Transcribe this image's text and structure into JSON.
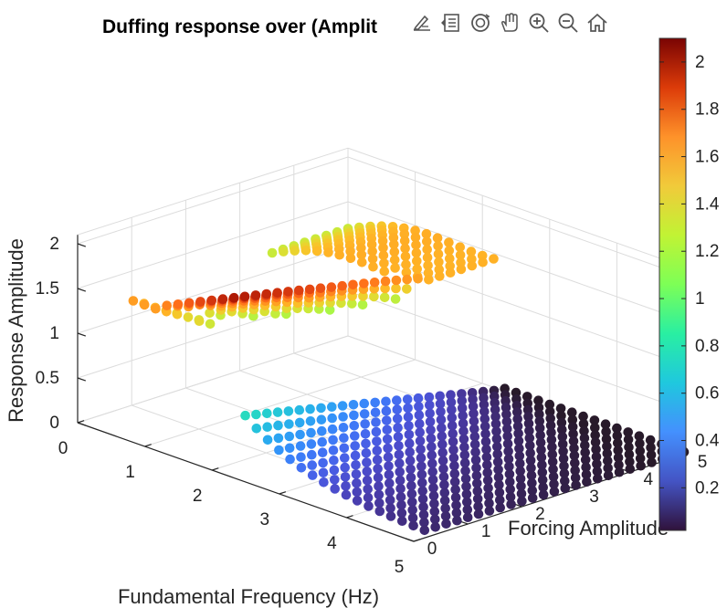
{
  "chart_data": {
    "type": "scatter3d",
    "title": "Duffing response over (Amplit",
    "xlabel": "Fundamental Frequency (Hz)",
    "ylabel": "Forcing Amplitude",
    "zlabel": "Response Amplitude",
    "x_ticks": [
      "0",
      "1",
      "2",
      "3",
      "4",
      "5"
    ],
    "y_ticks": [
      "0",
      "1",
      "2",
      "3",
      "4",
      "5"
    ],
    "z_ticks": [
      "0",
      "0.5",
      "1",
      "1.5",
      "2"
    ],
    "xlim": [
      0,
      5
    ],
    "ylim": [
      0,
      5
    ],
    "zlim": [
      0,
      2.1
    ],
    "grid": true,
    "colormap": "turbo",
    "colorbar": {
      "range": [
        0.02,
        2.1
      ],
      "ticks": [
        "0.2",
        "0.4",
        "0.6",
        "0.8",
        "1",
        "1.2",
        "1.4",
        "1.6",
        "1.8",
        "2"
      ]
    },
    "sampling": {
      "frequency": {
        "start": 0,
        "stop": 5,
        "count": 31
      },
      "forcing": {
        "start": 0,
        "stop": 5,
        "count": 26
      }
    }
  },
  "toolbar": {
    "icons": [
      "brush-icon",
      "data-tips-icon",
      "rotate-3d-icon",
      "pan-hand-icon",
      "zoom-in-icon",
      "zoom-out-icon",
      "home-icon"
    ]
  }
}
